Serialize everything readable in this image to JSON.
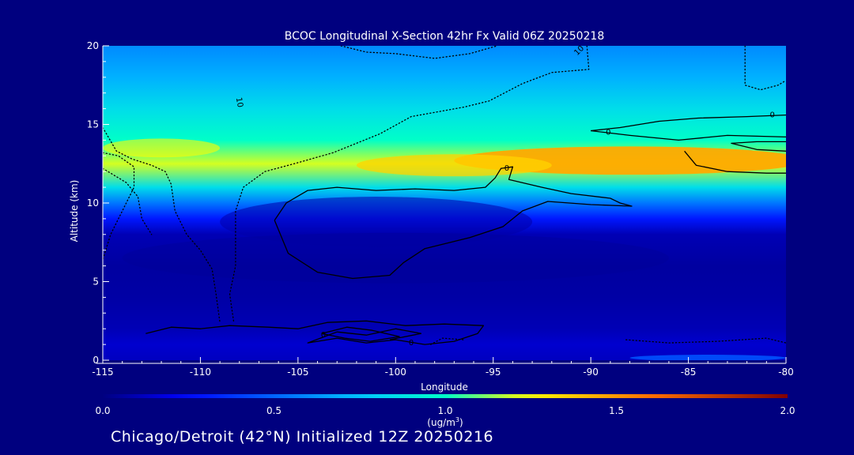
{
  "chart_data": {
    "type": "heatmap",
    "title": "BCOC Longitudinal X-Section 42hr  Fx Valid 06Z 20250218",
    "xlabel": "Longitude",
    "ylabel": "Altitude (km)",
    "xlim": [
      -115,
      -80
    ],
    "ylim": [
      0,
      20
    ],
    "x_ticks": [
      -115,
      -110,
      -105,
      -100,
      -95,
      -90,
      -85,
      -80
    ],
    "x_tick_labels": [
      "-115",
      "-110",
      "-105",
      "-100",
      "-95",
      "-90",
      "-85",
      "-80"
    ],
    "y_ticks": [
      0,
      5,
      10,
      15,
      20
    ],
    "y_tick_labels": [
      "0",
      "5",
      "10",
      "15",
      "20"
    ],
    "colorbar": {
      "min": 0.0,
      "max": 2.0,
      "tick_values": [
        0.0,
        0.5,
        1.0,
        1.5,
        2.0
      ],
      "tick_labels": [
        "0.0",
        "0.5",
        "1.0",
        "1.5",
        "2.0"
      ],
      "unit_label": "(ug/m",
      "unit_sup": "3",
      "unit_close": ")"
    },
    "field_bands": [
      {
        "alt_km": 0,
        "value": 0.12
      },
      {
        "alt_km": 1,
        "value": 0.15
      },
      {
        "alt_km": 2,
        "value": 0.1
      },
      {
        "alt_km": 4,
        "value": 0.07
      },
      {
        "alt_km": 6,
        "value": 0.06
      },
      {
        "alt_km": 8,
        "value": 0.1
      },
      {
        "alt_km": 9,
        "value": 0.3
      },
      {
        "alt_km": 10,
        "value": 0.55
      },
      {
        "alt_km": 11,
        "value": 0.85
      },
      {
        "alt_km": 12.5,
        "value": 1.2
      },
      {
        "alt_km": 14,
        "value": 1.0
      },
      {
        "alt_km": 16,
        "value": 0.85
      },
      {
        "alt_km": 18,
        "value": 0.7
      },
      {
        "alt_km": 20,
        "value": 0.6
      }
    ],
    "contours": [
      {
        "level": 0,
        "style": "solid",
        "points": [
          [
            -106.2,
            8.9
          ],
          [
            -105.6,
            10.0
          ],
          [
            -104.5,
            10.8
          ],
          [
            -103,
            11.0
          ],
          [
            -101,
            10.8
          ],
          [
            -99,
            10.9
          ],
          [
            -97,
            10.8
          ],
          [
            -95.4,
            11.0
          ],
          [
            -94.9,
            11.6
          ],
          [
            -94.6,
            12.2
          ],
          [
            -94.0,
            12.3
          ],
          [
            -94.2,
            11.5
          ],
          [
            -92.5,
            11.0
          ],
          [
            -91,
            10.6
          ],
          [
            -89,
            10.3
          ],
          [
            -88.5,
            10.0
          ],
          [
            -87.9,
            9.8
          ],
          [
            -90,
            9.9
          ],
          [
            -92.2,
            10.1
          ],
          [
            -93.5,
            9.5
          ],
          [
            -94.5,
            8.5
          ],
          [
            -96.2,
            7.8
          ],
          [
            -98.5,
            7.1
          ],
          [
            -99.6,
            6.2
          ],
          [
            -100.3,
            5.4
          ],
          [
            -102.2,
            5.2
          ],
          [
            -104,
            5.6
          ],
          [
            -105.5,
            6.8
          ],
          [
            -106.2,
            8.9
          ]
        ]
      },
      {
        "level": 0,
        "style": "solid",
        "points": [
          [
            -90,
            14.6
          ],
          [
            -88.5,
            14.8
          ],
          [
            -86.5,
            15.2
          ],
          [
            -84.5,
            15.4
          ],
          [
            -82,
            15.5
          ],
          [
            -80,
            15.6
          ]
        ]
      },
      {
        "level": 0,
        "style": "solid",
        "points": [
          [
            -90,
            14.6
          ],
          [
            -88,
            14.3
          ],
          [
            -85.5,
            14.0
          ],
          [
            -83,
            14.3
          ],
          [
            -80,
            14.2
          ]
        ]
      },
      {
        "level": 0,
        "style": "solid",
        "points": [
          [
            -85.2,
            13.3
          ],
          [
            -84.6,
            12.4
          ],
          [
            -83,
            12.0
          ],
          [
            -81,
            11.9
          ],
          [
            -80,
            11.9
          ]
        ]
      },
      {
        "level": 0,
        "style": "solid",
        "points": [
          [
            -80,
            13.9
          ],
          [
            -81.5,
            13.9
          ],
          [
            -82.8,
            13.8
          ],
          [
            -81.5,
            13.4
          ],
          [
            -80,
            13.3
          ]
        ]
      },
      {
        "level": 0,
        "style": "solid",
        "points": [
          [
            -112.8,
            1.7
          ],
          [
            -111.5,
            2.1
          ],
          [
            -110,
            2.0
          ],
          [
            -108.5,
            2.2
          ],
          [
            -106.5,
            2.1
          ],
          [
            -105,
            2.0
          ],
          [
            -103.5,
            2.4
          ],
          [
            -101.5,
            2.5
          ],
          [
            -99.5,
            2.2
          ],
          [
            -97.5,
            2.3
          ],
          [
            -95.5,
            2.2
          ],
          [
            -95.8,
            1.7
          ],
          [
            -97,
            1.2
          ],
          [
            -98.5,
            1.0
          ],
          [
            -100,
            1.3
          ],
          [
            -101.5,
            1.1
          ],
          [
            -103,
            1.4
          ],
          [
            -104.5,
            1.1
          ],
          [
            -103,
            1.8
          ],
          [
            -101.5,
            1.6
          ],
          [
            -100,
            2.0
          ],
          [
            -98.7,
            1.7
          ],
          [
            -100.3,
            1.3
          ]
        ]
      },
      {
        "level": 0,
        "style": "solid",
        "points": [
          [
            -103.8,
            1.7
          ],
          [
            -102.5,
            2.1
          ],
          [
            -101.2,
            1.9
          ],
          [
            -99.8,
            1.5
          ],
          [
            -101.3,
            1.2
          ],
          [
            -102.6,
            1.4
          ],
          [
            -103.8,
            1.7
          ]
        ]
      },
      {
        "level": -10,
        "style": "dotted",
        "points": [
          [
            -115,
            14.8
          ],
          [
            -114.3,
            13.3
          ],
          [
            -113.5,
            12.8
          ],
          [
            -112.5,
            12.4
          ],
          [
            -111.8,
            12.0
          ],
          [
            -111.5,
            11.2
          ],
          [
            -111.3,
            9.5
          ],
          [
            -110.7,
            8.0
          ],
          [
            -110,
            7.0
          ],
          [
            -109.4,
            5.8
          ],
          [
            -109.2,
            4.2
          ],
          [
            -109.0,
            2.4
          ]
        ]
      },
      {
        "level": -10,
        "style": "dotted",
        "points": [
          [
            -115,
            13.2
          ],
          [
            -114.2,
            13.0
          ],
          [
            -113.4,
            12.3
          ],
          [
            -113.4,
            11.0
          ],
          [
            -114,
            9.5
          ],
          [
            -114.6,
            8.0
          ],
          [
            -115,
            6.4
          ]
        ]
      },
      {
        "level": -10,
        "style": "dotted",
        "points": [
          [
            -102.8,
            20
          ],
          [
            -101.5,
            19.6
          ],
          [
            -100,
            19.5
          ],
          [
            -98,
            19.2
          ],
          [
            -96.2,
            19.5
          ],
          [
            -94.8,
            20
          ]
        ]
      },
      {
        "level": -10,
        "style": "dotted",
        "points": [
          [
            -115,
            12.2
          ],
          [
            -113.8,
            11.3
          ],
          [
            -113.2,
            10.4
          ],
          [
            -113.0,
            9.0
          ],
          [
            -112.5,
            8.0
          ]
        ]
      },
      {
        "level": -10,
        "style": "dotted",
        "points": [
          [
            -90.2,
            20
          ],
          [
            -90.1,
            18.5
          ],
          [
            -92,
            18.3
          ],
          [
            -93.5,
            17.6
          ],
          [
            -95.2,
            16.5
          ],
          [
            -96.5,
            16.1
          ],
          [
            -99.2,
            15.5
          ],
          [
            -100.8,
            14.4
          ],
          [
            -103.2,
            13.2
          ],
          [
            -105.2,
            12.5
          ],
          [
            -106.7,
            12.0
          ],
          [
            -107.8,
            11.0
          ],
          [
            -108.2,
            9.5
          ],
          [
            -108.2,
            7.5
          ],
          [
            -108.2,
            6.0
          ],
          [
            -108.5,
            4.2
          ],
          [
            -108.3,
            2.5
          ]
        ]
      },
      {
        "level": -10,
        "style": "dotted",
        "points": [
          [
            -82.1,
            20
          ],
          [
            -82.1,
            17.5
          ],
          [
            -81.3,
            17.2
          ],
          [
            -80.4,
            17.5
          ],
          [
            -80,
            17.8
          ]
        ]
      },
      {
        "level": -10,
        "style": "dotted",
        "points": [
          [
            -88.2,
            1.3
          ],
          [
            -86,
            1.1
          ],
          [
            -83.5,
            1.2
          ],
          [
            -81,
            1.4
          ],
          [
            -80,
            1.1
          ]
        ]
      },
      {
        "level": -10,
        "style": "dotted",
        "points": [
          [
            -98.2,
            1.0
          ],
          [
            -97.6,
            1.4
          ],
          [
            -96.5,
            1.3
          ]
        ]
      }
    ],
    "contour_labels": [
      {
        "text": "10",
        "x": -108.0,
        "y": 16.4,
        "rotate": 80
      },
      {
        "text": "10",
        "x": -90.6,
        "y": 19.7,
        "rotate": -45
      },
      {
        "text": "0",
        "x": -89.1,
        "y": 14.5,
        "rotate": 0
      },
      {
        "text": "0",
        "x": -80.7,
        "y": 15.6,
        "rotate": 0
      },
      {
        "text": "0",
        "x": -94.3,
        "y": 12.2,
        "rotate": 0
      },
      {
        "text": "0",
        "x": -103.7,
        "y": 1.6,
        "rotate": 0
      },
      {
        "text": "0",
        "x": -99.2,
        "y": 1.1,
        "rotate": 0
      }
    ]
  },
  "footer": {
    "text": "Chicago/Detroit (42°N) Initialized 12Z 20250216"
  },
  "colors": {
    "background": "#00007f",
    "text": "#ffffff",
    "contour": "#000000"
  }
}
